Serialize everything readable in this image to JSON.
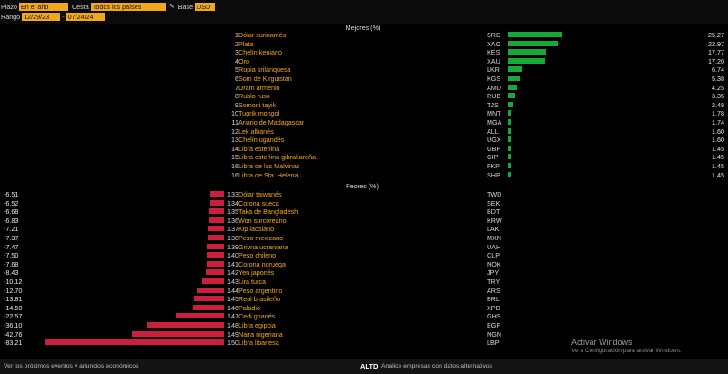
{
  "toolbar": {
    "plazo_label": "Plazo",
    "plazo_value": "En el año",
    "cesta_label": "Cesta",
    "cesta_value": "Todos los países",
    "base_label": "Base",
    "base_value": "USD",
    "rango_label": "Rango",
    "date_start": "12/29/23",
    "date_end": "07/24/24",
    "date_separator": "-"
  },
  "mejores": {
    "title": "Mejores (%)",
    "rows": [
      {
        "rank": "1",
        "name": "Dólar surinamés",
        "code": "SRD",
        "value": "25.27",
        "num": 25.27
      },
      {
        "rank": "2",
        "name": "Plata",
        "code": "XAG",
        "value": "22.97",
        "num": 22.97
      },
      {
        "rank": "3",
        "name": "Chelín keniano",
        "code": "KES",
        "value": "17.77",
        "num": 17.77
      },
      {
        "rank": "4",
        "name": "Oro",
        "code": "XAU",
        "value": "17.20",
        "num": 17.2
      },
      {
        "rank": "5",
        "name": "Rupia srilanquesa",
        "code": "LKR",
        "value": "6.74",
        "num": 6.74
      },
      {
        "rank": "6",
        "name": "Som de Kirguistán",
        "code": "KGS",
        "value": "5.38",
        "num": 5.38
      },
      {
        "rank": "7",
        "name": "Dram armenio",
        "code": "AMD",
        "value": "4.25",
        "num": 4.25
      },
      {
        "rank": "8",
        "name": "Rublo ruso",
        "code": "RUB",
        "value": "3.35",
        "num": 3.35
      },
      {
        "rank": "9",
        "name": "Somoni tayik",
        "code": "TJS",
        "value": "2.48",
        "num": 2.48
      },
      {
        "rank": "10",
        "name": "Tugrik mongol",
        "code": "MNT",
        "value": "1.78",
        "num": 1.78
      },
      {
        "rank": "11",
        "name": "Ariario de Madagascar",
        "code": "MGA",
        "value": "1.74",
        "num": 1.74
      },
      {
        "rank": "12",
        "name": "Lek albanés",
        "code": "ALL",
        "value": "1.60",
        "num": 1.6
      },
      {
        "rank": "13",
        "name": "Chelín ugandés",
        "code": "UGX",
        "value": "1.60",
        "num": 1.6
      },
      {
        "rank": "14",
        "name": "Libra esterlina",
        "code": "GBP",
        "value": "1.45",
        "num": 1.45
      },
      {
        "rank": "15",
        "name": "Libra esterlina gibraltareña",
        "code": "GIP",
        "value": "1.45",
        "num": 1.45
      },
      {
        "rank": "16",
        "name": "Libra de las Malvinas",
        "code": "FKP",
        "value": "1.45",
        "num": 1.45
      },
      {
        "rank": "16",
        "name": "Libra de Sta. Helena",
        "code": "SHP",
        "value": "1.45",
        "num": 1.45
      }
    ]
  },
  "peores": {
    "title": "Peores (%)",
    "rows": [
      {
        "rank": "133",
        "name": "Dólar taiwanés",
        "code": "TWD",
        "value": "-6.51",
        "num": -6.51
      },
      {
        "rank": "134",
        "name": "Corona sueca",
        "code": "SEK",
        "value": "-6.52",
        "num": -6.52
      },
      {
        "rank": "135",
        "name": "Taka de Bangladesh",
        "code": "BDT",
        "value": "-6.68",
        "num": -6.68
      },
      {
        "rank": "136",
        "name": "Won surcoreano",
        "code": "KRW",
        "value": "-6.83",
        "num": -6.83
      },
      {
        "rank": "137",
        "name": "Kip laosiano",
        "code": "LAK",
        "value": "-7.21",
        "num": -7.21
      },
      {
        "rank": "138",
        "name": "Peso mexicano",
        "code": "MXN",
        "value": "-7.37",
        "num": -7.37
      },
      {
        "rank": "139",
        "name": "Grivna ucraniana",
        "code": "UAH",
        "value": "-7.47",
        "num": -7.47
      },
      {
        "rank": "140",
        "name": "Peso chileno",
        "code": "CLP",
        "value": "-7.50",
        "num": -7.5
      },
      {
        "rank": "141",
        "name": "Corona noruega",
        "code": "NOK",
        "value": "-7.68",
        "num": -7.68
      },
      {
        "rank": "142",
        "name": "Yen japonés",
        "code": "JPY",
        "value": "-8.43",
        "num": -8.43
      },
      {
        "rank": "143",
        "name": "Lira turca",
        "code": "TRY",
        "value": "-10.12",
        "num": -10.12
      },
      {
        "rank": "144",
        "name": "Peso argentino",
        "code": "ARS",
        "value": "-12.70",
        "num": -12.7
      },
      {
        "rank": "145",
        "name": "Real brasileño",
        "code": "BRL",
        "value": "-13.81",
        "num": -13.81
      },
      {
        "rank": "146",
        "name": "Paladio",
        "code": "XPD",
        "value": "-14.50",
        "num": -14.5
      },
      {
        "rank": "147",
        "name": "Cedi ghanés",
        "code": "GHS",
        "value": "-22.57",
        "num": -22.57
      },
      {
        "rank": "148",
        "name": "Libra egipcia",
        "code": "EGP",
        "value": "-36.10",
        "num": -36.1
      },
      {
        "rank": "149",
        "name": "Naira nigeriana",
        "code": "NGN",
        "value": "-42.76",
        "num": -42.76
      },
      {
        "rank": "150",
        "name": "Libra libanesa",
        "code": "LBP",
        "value": "-83.21",
        "num": -83.21
      }
    ]
  },
  "watermark": {
    "line1": "Activar Windows",
    "line2": "Ve a Configuración para activar Windows."
  },
  "footer": {
    "events_text": "Ver los próximos eventos y anuncios económicos",
    "altd_label": "ALTD",
    "altd_text": "Analice empresas con datos alternativos"
  },
  "colors": {
    "accent": "#f2a81d",
    "positive_bar": "#17a83a",
    "negative_bar": "#cc1f3d"
  }
}
